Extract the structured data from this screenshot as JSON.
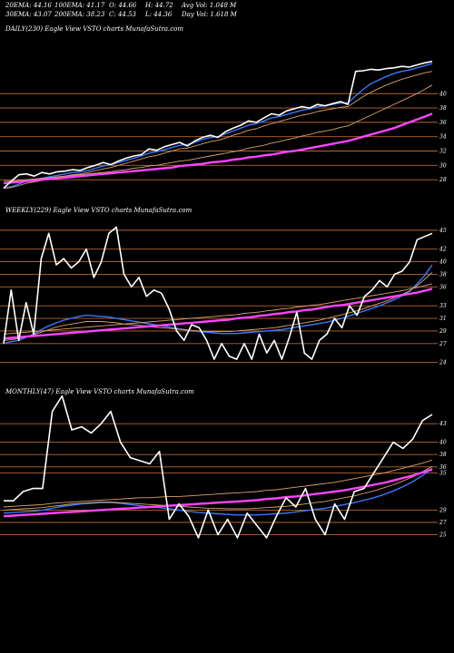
{
  "header": {
    "row1": [
      "20EMA: 44.16",
      "100EMA: 41.17",
      "O: 44.66",
      "H: 44.72",
      "Avg Vol: 1.048 M"
    ],
    "row2": [
      "30EMA: 43.07",
      "200EMA: 38.23",
      "C: 44.53",
      "L: 44.36",
      "Day Vol: 1.618 M"
    ]
  },
  "colors": {
    "background": "#000000",
    "price": "#ffffff",
    "grid": "#b8662c",
    "ema_short": "#3a78ff",
    "ema_long": "#ff44ff",
    "ema_mid": "#d9a36a"
  },
  "chart_data": [
    {
      "type": "line",
      "title": "DAILY(230) Eagle   View  VSTO charts MunafaSutra.com",
      "y_ticks": [
        "40",
        "38",
        "36",
        "34",
        "32",
        "30",
        "28"
      ],
      "y_tick_values": [
        40,
        38,
        36,
        34,
        32,
        30,
        28
      ],
      "ylim": [
        26.5,
        48
      ],
      "series": [
        {
          "role": "price",
          "values": [
            26.8,
            27.8,
            28.7,
            28.8,
            28.5,
            29.0,
            28.8,
            29.1,
            29.2,
            29.4,
            29.3,
            29.7,
            30.0,
            30.4,
            30.1,
            30.6,
            31.0,
            31.3,
            31.5,
            32.3,
            32.1,
            32.6,
            32.9,
            33.2,
            32.7,
            33.4,
            33.9,
            34.2,
            33.9,
            34.7,
            35.2,
            35.6,
            36.2,
            36.0,
            36.6,
            37.2,
            37.0,
            37.6,
            37.9,
            38.2,
            38.0,
            38.5,
            38.3,
            38.6,
            38.9,
            38.5,
            43.1,
            43.2,
            43.4,
            43.3,
            43.5,
            43.6,
            43.8,
            43.7,
            44.0,
            44.3,
            44.5
          ]
        },
        {
          "role": "ema20",
          "values": [
            26.8,
            27.0,
            27.4,
            27.8,
            28.0,
            28.2,
            28.4,
            28.6,
            28.8,
            29.0,
            29.1,
            29.3,
            29.6,
            29.9,
            30.1,
            30.4,
            30.7,
            31.0,
            31.3,
            31.7,
            31.9,
            32.2,
            32.5,
            32.8,
            32.9,
            33.2,
            33.6,
            33.9,
            34.0,
            34.4,
            34.8,
            35.2,
            35.6,
            35.8,
            36.2,
            36.6,
            36.8,
            37.1,
            37.4,
            37.7,
            37.9,
            38.2,
            38.3,
            38.5,
            38.7,
            38.7,
            39.7,
            40.6,
            41.4,
            41.9,
            42.4,
            42.8,
            43.1,
            43.3,
            43.6,
            43.9,
            44.2
          ]
        },
        {
          "role": "ema30",
          "values": [
            26.8,
            26.9,
            27.2,
            27.5,
            27.7,
            27.9,
            28.1,
            28.3,
            28.5,
            28.7,
            28.8,
            29.0,
            29.3,
            29.5,
            29.7,
            30.0,
            30.3,
            30.6,
            30.9,
            31.2,
            31.4,
            31.7,
            32.0,
            32.3,
            32.4,
            32.7,
            33.0,
            33.3,
            33.5,
            33.8,
            34.2,
            34.5,
            34.9,
            35.1,
            35.5,
            35.8,
            36.1,
            36.4,
            36.7,
            37.0,
            37.2,
            37.5,
            37.7,
            37.9,
            38.1,
            38.2,
            38.9,
            39.6,
            40.2,
            40.7,
            41.2,
            41.6,
            42.0,
            42.3,
            42.6,
            42.9,
            43.1
          ]
        },
        {
          "role": "ema100",
          "values": [
            27.8,
            27.8,
            27.9,
            28.0,
            28.1,
            28.2,
            28.3,
            28.4,
            28.5,
            28.6,
            28.7,
            28.8,
            28.9,
            29.0,
            29.1,
            29.3,
            29.4,
            29.6,
            29.7,
            29.9,
            30.0,
            30.2,
            30.4,
            30.6,
            30.7,
            30.9,
            31.1,
            31.3,
            31.5,
            31.7,
            31.9,
            32.1,
            32.4,
            32.6,
            32.8,
            33.1,
            33.3,
            33.6,
            33.8,
            34.1,
            34.3,
            34.6,
            34.8,
            35.0,
            35.3,
            35.5,
            36.0,
            36.5,
            37.0,
            37.5,
            38.0,
            38.5,
            39.0,
            39.5,
            40.0,
            40.6,
            41.2
          ]
        },
        {
          "role": "ema200",
          "values": [
            27.5,
            27.6,
            27.7,
            27.8,
            27.9,
            28.0,
            28.1,
            28.2,
            28.3,
            28.4,
            28.5,
            28.6,
            28.7,
            28.8,
            28.9,
            29.0,
            29.1,
            29.2,
            29.3,
            29.4,
            29.5,
            29.6,
            29.7,
            29.9,
            30.0,
            30.1,
            30.2,
            30.4,
            30.5,
            30.6,
            30.8,
            30.9,
            31.1,
            31.2,
            31.4,
            31.5,
            31.7,
            31.9,
            32.0,
            32.2,
            32.4,
            32.6,
            32.8,
            33.0,
            33.2,
            33.4,
            33.7,
            34.0,
            34.3,
            34.6,
            34.9,
            35.2,
            35.6,
            36.0,
            36.4,
            36.8,
            37.2
          ]
        }
      ]
    },
    {
      "type": "line",
      "title": "WEEKLY(229) Eagle   View  VSTO charts MunafaSutra.com",
      "y_ticks": [
        "45",
        "42",
        "40",
        "38",
        "36",
        "33",
        "31",
        "29",
        "27",
        "24"
      ],
      "y_tick_values": [
        45,
        42,
        40,
        38,
        36,
        33,
        31,
        29,
        27,
        24
      ],
      "ylim": [
        22.5,
        47
      ],
      "series": [
        {
          "role": "price",
          "values": [
            27.0,
            35.5,
            27.5,
            33.5,
            28.5,
            40.5,
            44.5,
            39.5,
            40.5,
            39.0,
            40.0,
            42.0,
            37.5,
            40.0,
            44.5,
            45.5,
            38.0,
            36.0,
            37.5,
            34.5,
            35.5,
            35.0,
            32.5,
            29.0,
            27.5,
            30.0,
            29.5,
            27.5,
            24.5,
            27.0,
            25.0,
            24.5,
            27.0,
            24.5,
            28.5,
            25.5,
            27.5,
            24.5,
            28.0,
            32.0,
            25.5,
            24.5,
            27.5,
            28.5,
            31.0,
            29.5,
            33.0,
            31.5,
            34.5,
            35.5,
            37.0,
            36.0,
            38.0,
            38.5,
            40.0,
            43.5,
            44.0,
            44.5
          ]
        },
        {
          "role": "ema20",
          "values": [
            27.0,
            27.3,
            27.5,
            28.0,
            28.5,
            29.2,
            29.8,
            30.3,
            30.7,
            31.0,
            31.3,
            31.5,
            31.4,
            31.3,
            31.2,
            31.0,
            30.8,
            30.6,
            30.4,
            30.2,
            30.0,
            29.8,
            29.6,
            29.4,
            29.2,
            29.0,
            28.9,
            28.8,
            28.7,
            28.6,
            28.6,
            28.6,
            28.7,
            28.8,
            28.9,
            29.0,
            29.1,
            29.2,
            29.4,
            29.6,
            29.8,
            30.0,
            30.2,
            30.4,
            30.7,
            31.0,
            31.4,
            31.8,
            32.2,
            32.6,
            33.0,
            33.5,
            34.0,
            34.6,
            35.3,
            36.5,
            37.8,
            39.5
          ]
        },
        {
          "role": "ema30",
          "values": [
            27.5,
            27.6,
            27.8,
            28.1,
            28.4,
            28.8,
            29.2,
            29.6,
            29.9,
            30.1,
            30.3,
            30.5,
            30.5,
            30.5,
            30.4,
            30.3,
            30.1,
            30.0,
            29.9,
            29.8,
            29.6,
            29.5,
            29.4,
            29.3,
            29.2,
            29.1,
            29.0,
            28.9,
            28.9,
            28.9,
            28.9,
            29.0,
            29.1,
            29.2,
            29.3,
            29.4,
            29.5,
            29.7,
            29.9,
            30.1,
            30.3,
            30.5,
            30.7,
            31.0,
            31.3,
            31.6,
            31.9,
            32.2,
            32.6,
            33.0,
            33.4,
            33.8,
            34.3,
            34.8,
            35.4,
            36.2,
            37.2,
            38.3
          ]
        },
        {
          "role": "ema100",
          "values": [
            28.5,
            28.6,
            28.7,
            28.8,
            28.9,
            29.0,
            29.1,
            29.2,
            29.3,
            29.4,
            29.5,
            29.6,
            29.7,
            29.8,
            29.9,
            30.0,
            30.1,
            30.2,
            30.3,
            30.4,
            30.5,
            30.6,
            30.7,
            30.8,
            30.9,
            31.0,
            31.1,
            31.2,
            31.3,
            31.4,
            31.5,
            31.6,
            31.8,
            31.9,
            32.0,
            32.2,
            32.3,
            32.5,
            32.6,
            32.8,
            32.9,
            33.1,
            33.2,
            33.4,
            33.6,
            33.8,
            34.0,
            34.2,
            34.4,
            34.6,
            34.8,
            35.0,
            35.2,
            35.4,
            35.7,
            35.9,
            36.2,
            36.5
          ]
        },
        {
          "role": "ema200",
          "values": [
            27.8,
            27.9,
            28.0,
            28.1,
            28.2,
            28.3,
            28.4,
            28.5,
            28.6,
            28.7,
            28.8,
            28.9,
            29.0,
            29.1,
            29.2,
            29.3,
            29.4,
            29.5,
            29.6,
            29.7,
            29.8,
            29.9,
            30.0,
            30.1,
            30.2,
            30.3,
            30.4,
            30.5,
            30.6,
            30.7,
            30.8,
            31.0,
            31.1,
            31.2,
            31.4,
            31.5,
            31.7,
            31.8,
            32.0,
            32.1,
            32.3,
            32.4,
            32.6,
            32.8,
            33.0,
            33.1,
            33.3,
            33.5,
            33.7,
            33.9,
            34.1,
            34.3,
            34.5,
            34.7,
            34.9,
            35.1,
            35.4,
            35.7
          ]
        }
      ]
    },
    {
      "type": "line",
      "title": "MONTHLY(47) Eagle   View  VSTO charts MunafaSutra.com",
      "y_ticks": [
        "43",
        "40",
        "38",
        "36",
        "35",
        "29",
        "27",
        "25"
      ],
      "y_tick_values": [
        43,
        40,
        38,
        36,
        35,
        29,
        27,
        25
      ],
      "ylim": [
        22,
        47
      ],
      "series": [
        {
          "role": "price",
          "values": [
            30.5,
            30.5,
            32.0,
            32.5,
            32.5,
            45.0,
            47.5,
            42.0,
            42.5,
            41.5,
            43.0,
            45.0,
            40.0,
            37.5,
            37.0,
            36.5,
            38.5,
            27.5,
            30.0,
            28.0,
            24.5,
            29.0,
            25.0,
            27.5,
            24.5,
            28.5,
            26.5,
            24.5,
            28.0,
            31.0,
            29.5,
            32.5,
            27.5,
            25.0,
            30.0,
            27.5,
            32.0,
            32.5,
            35.0,
            37.5,
            40.0,
            39.0,
            40.5,
            43.5,
            44.5
          ]
        },
        {
          "role": "ema20",
          "values": [
            28.5,
            28.6,
            28.7,
            28.8,
            29.0,
            29.3,
            29.6,
            29.8,
            30.0,
            30.1,
            30.2,
            30.2,
            30.1,
            29.9,
            29.7,
            29.5,
            29.4,
            29.2,
            29.0,
            28.8,
            28.6,
            28.5,
            28.4,
            28.3,
            28.2,
            28.2,
            28.2,
            28.3,
            28.4,
            28.5,
            28.7,
            28.9,
            29.1,
            29.3,
            29.6,
            29.9,
            30.2,
            30.6,
            31.0,
            31.5,
            32.1,
            32.8,
            33.6,
            34.6,
            35.8
          ]
        },
        {
          "role": "ema30",
          "values": [
            29.0,
            29.1,
            29.2,
            29.3,
            29.4,
            29.6,
            29.8,
            30.0,
            30.1,
            30.2,
            30.3,
            30.3,
            30.2,
            30.1,
            30.0,
            29.9,
            29.8,
            29.7,
            29.6,
            29.5,
            29.4,
            29.3,
            29.3,
            29.2,
            29.2,
            29.2,
            29.3,
            29.4,
            29.5,
            29.6,
            29.8,
            30.0,
            30.2,
            30.4,
            30.7,
            31.0,
            31.3,
            31.7,
            32.1,
            32.6,
            33.1,
            33.7,
            34.4,
            35.2,
            36.1
          ]
        },
        {
          "role": "ema100",
          "values": [
            29.5,
            29.6,
            29.7,
            29.8,
            29.9,
            30.1,
            30.2,
            30.3,
            30.4,
            30.5,
            30.6,
            30.7,
            30.8,
            30.9,
            31.0,
            31.0,
            31.1,
            31.2,
            31.2,
            31.3,
            31.4,
            31.5,
            31.6,
            31.7,
            31.8,
            31.9,
            32.0,
            32.2,
            32.3,
            32.5,
            32.7,
            32.9,
            33.1,
            33.3,
            33.5,
            33.8,
            34.1,
            34.4,
            34.7,
            35.0,
            35.4,
            35.8,
            36.2,
            36.6,
            37.1
          ]
        },
        {
          "role": "ema200",
          "values": [
            28.0,
            28.1,
            28.2,
            28.3,
            28.4,
            28.5,
            28.6,
            28.7,
            28.8,
            28.9,
            29.0,
            29.1,
            29.2,
            29.3,
            29.4,
            29.5,
            29.6,
            29.7,
            29.8,
            29.9,
            30.0,
            30.1,
            30.2,
            30.3,
            30.4,
            30.5,
            30.6,
            30.8,
            30.9,
            31.1,
            31.2,
            31.4,
            31.6,
            31.8,
            32.0,
            32.2,
            32.5,
            32.8,
            33.1,
            33.4,
            33.8,
            34.2,
            34.6,
            35.1,
            35.6
          ]
        }
      ]
    }
  ]
}
